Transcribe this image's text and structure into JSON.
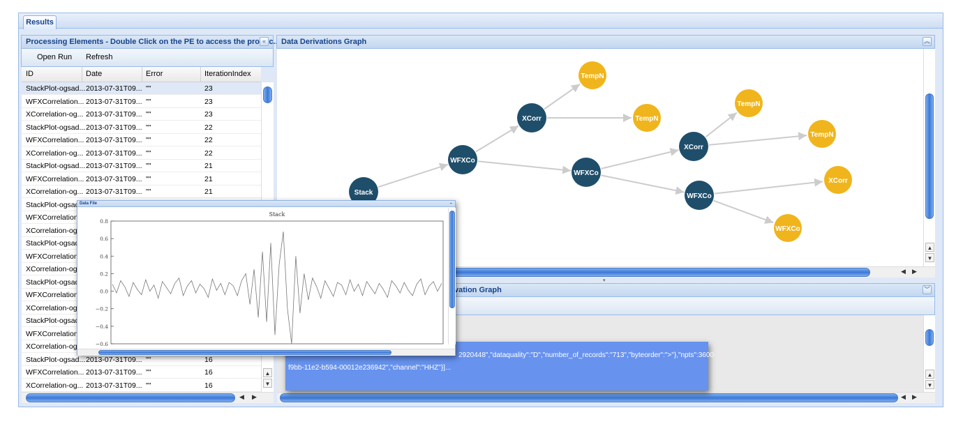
{
  "tabs": {
    "results_label": "Results"
  },
  "left_panel": {
    "title": "Processing Elements - Double Click on the PE to access the produc...",
    "collapse_glyph": "«",
    "toolbar": {
      "open_run": "Open Run",
      "refresh": "Refresh"
    },
    "columns": [
      "ID",
      "Date",
      "Error",
      "IterationIndex"
    ],
    "rows": [
      {
        "id": "StackPlot-ogsad...",
        "date": "2013-07-31T09...",
        "error": "\"\"",
        "index": "23"
      },
      {
        "id": "WFXCorrelation...",
        "date": "2013-07-31T09...",
        "error": "\"\"",
        "index": "23"
      },
      {
        "id": "XCorrelation-og...",
        "date": "2013-07-31T09...",
        "error": "\"\"",
        "index": "23"
      },
      {
        "id": "StackPlot-ogsad...",
        "date": "2013-07-31T09...",
        "error": "\"\"",
        "index": "22"
      },
      {
        "id": "WFXCorrelation...",
        "date": "2013-07-31T09...",
        "error": "\"\"",
        "index": "22"
      },
      {
        "id": "XCorrelation-og...",
        "date": "2013-07-31T09...",
        "error": "\"\"",
        "index": "22"
      },
      {
        "id": "StackPlot-ogsad...",
        "date": "2013-07-31T09...",
        "error": "\"\"",
        "index": "21"
      },
      {
        "id": "WFXCorrelation...",
        "date": "2013-07-31T09...",
        "error": "\"\"",
        "index": "21"
      },
      {
        "id": "XCorrelation-og...",
        "date": "2013-07-31T09...",
        "error": "\"\"",
        "index": "21"
      },
      {
        "id": "StackPlot-ogsad...",
        "date": "",
        "error": "",
        "index": ""
      },
      {
        "id": "WFXCorrelation...",
        "date": "",
        "error": "",
        "index": ""
      },
      {
        "id": "XCorrelation-og...",
        "date": "",
        "error": "",
        "index": ""
      },
      {
        "id": "StackPlot-ogsad...",
        "date": "",
        "error": "",
        "index": ""
      },
      {
        "id": "WFXCorrelation...",
        "date": "",
        "error": "",
        "index": ""
      },
      {
        "id": "XCorrelation-og...",
        "date": "",
        "error": "",
        "index": ""
      },
      {
        "id": "StackPlot-ogsad...",
        "date": "",
        "error": "",
        "index": ""
      },
      {
        "id": "WFXCorrelation...",
        "date": "",
        "error": "",
        "index": ""
      },
      {
        "id": "XCorrelation-og...",
        "date": "",
        "error": "",
        "index": ""
      },
      {
        "id": "StackPlot-ogsad...",
        "date": "",
        "error": "",
        "index": ""
      },
      {
        "id": "WFXCorrelation...",
        "date": "",
        "error": "",
        "index": ""
      },
      {
        "id": "XCorrelation-og...",
        "date": "",
        "error": "",
        "index": ""
      },
      {
        "id": "StackPlot-ogsad...",
        "date": "2013-07-31T09...",
        "error": "\"\"",
        "index": "16"
      },
      {
        "id": "WFXCorrelation...",
        "date": "2013-07-31T09...",
        "error": "\"\"",
        "index": "16"
      },
      {
        "id": "XCorrelation-og...",
        "date": "2013-07-31T09...",
        "error": "\"\"",
        "index": "16"
      }
    ]
  },
  "graph_panel": {
    "title": "Data Derivations Graph",
    "nodes": [
      {
        "label": "TempN",
        "kind": "output"
      },
      {
        "label": "XCorr",
        "kind": "process"
      },
      {
        "label": "TempN",
        "kind": "output"
      },
      {
        "label": "TempN",
        "kind": "output"
      },
      {
        "label": "WFXCo",
        "kind": "process"
      },
      {
        "label": "XCorr",
        "kind": "process"
      },
      {
        "label": "TempN",
        "kind": "output"
      },
      {
        "label": "WFXCo",
        "kind": "process"
      },
      {
        "label": "XCorr",
        "kind": "output"
      },
      {
        "label": "Stack",
        "kind": "process"
      },
      {
        "label": "WFXCo",
        "kind": "process"
      },
      {
        "label": "WFXCo",
        "kind": "output"
      }
    ],
    "colors": {
      "process": "#1f4e6b",
      "output": "#f0b51c",
      "edge": "#cccccc"
    }
  },
  "bottom_panel": {
    "title_fragment": "vation Graph",
    "json_line1": "2920448\",\"dataquality\":\"D\",\"number_of_records\":\"713\",\"byteorder\":\">\"},\"npts\":3600",
    "json_line2": "f9bb-11e2-b594-00012e236942\",\"channel\":\"HHZ\"}]..."
  },
  "popup": {
    "title": "Data File",
    "chart_data": {
      "type": "line",
      "title": "Stack",
      "xlabel": "",
      "ylabel": "",
      "ylim": [
        -0.6,
        0.8
      ],
      "yticks": [
        "0.8",
        "0.6",
        "0.4",
        "0.2",
        "0.0",
        "−0.2",
        "−0.4",
        "−0.6"
      ],
      "series": [
        {
          "name": "stack",
          "values": [
            0.08,
            -0.02,
            0.12,
            0.05,
            -0.06,
            0.1,
            0.02,
            -0.04,
            0.13,
            0.0,
            0.07,
            -0.08,
            0.11,
            0.04,
            -0.03,
            0.09,
            0.15,
            -0.05,
            0.06,
            0.12,
            -0.02,
            0.08,
            0.03,
            -0.07,
            0.14,
            0.01,
            0.09,
            -0.04,
            0.1,
            0.06,
            -0.05,
            0.12,
            0.2,
            -0.15,
            0.25,
            -0.3,
            0.45,
            -0.35,
            0.55,
            -0.5,
            0.3,
            0.68,
            -0.2,
            -0.6,
            0.4,
            -0.25,
            0.2,
            -0.1,
            0.15,
            0.05,
            -0.08,
            0.12,
            0.03,
            -0.06,
            0.1,
            0.07,
            -0.04,
            0.13,
            0.0,
            0.08,
            -0.05,
            0.11,
            0.04,
            -0.03,
            0.09,
            0.02,
            -0.07,
            0.12,
            0.06,
            -0.02,
            0.1,
            0.01,
            -0.05,
            0.08,
            0.14,
            -0.04,
            0.06,
            0.11,
            0.0,
            0.09
          ]
        }
      ]
    }
  }
}
